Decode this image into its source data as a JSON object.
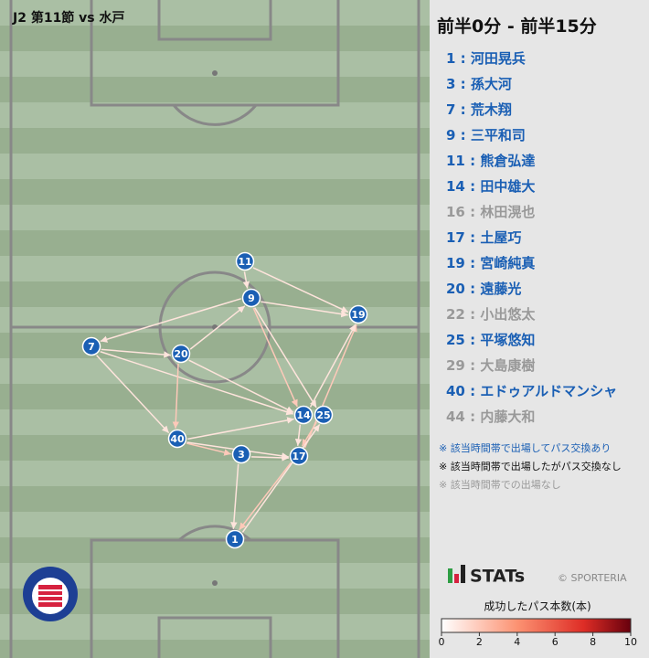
{
  "header": {
    "match": "J2 第11節 vs 水戸"
  },
  "panel": {
    "title": "前半0分 - 前半15分",
    "players": [
      {
        "label": "1 : 河田晃兵",
        "color": "#1a5fb4"
      },
      {
        "label": "3 : 孫大河",
        "color": "#1a5fb4"
      },
      {
        "label": "7 : 荒木翔",
        "color": "#1a5fb4"
      },
      {
        "label": "9 : 三平和司",
        "color": "#1a5fb4"
      },
      {
        "label": "11 : 熊倉弘達",
        "color": "#1a5fb4"
      },
      {
        "label": "14 : 田中雄大",
        "color": "#1a5fb4"
      },
      {
        "label": "16 : 林田滉也",
        "color": "#999999"
      },
      {
        "label": "17 : 土屋巧",
        "color": "#1a5fb4"
      },
      {
        "label": "19 : 宮崎純真",
        "color": "#1a5fb4"
      },
      {
        "label": "20 : 遠藤光",
        "color": "#1a5fb4"
      },
      {
        "label": "22 : 小出悠太",
        "color": "#999999"
      },
      {
        "label": "25 : 平塚悠知",
        "color": "#1a5fb4"
      },
      {
        "label": "29 : 大島康樹",
        "color": "#999999"
      },
      {
        "label": "40 : エドゥアルドマンシャ",
        "color": "#1a5fb4"
      },
      {
        "label": "44 : 内藤大和",
        "color": "#999999"
      }
    ],
    "notes": [
      {
        "text": "※ 該当時間帯で出場してパス交換あり",
        "color": "#1a5fb4"
      },
      {
        "text": "※ 該当時間帯で出場したがパス交換なし",
        "color": "#111111"
      },
      {
        "text": "※ 該当時間帯での出場なし",
        "color": "#999999"
      }
    ],
    "brand": "STATs",
    "copyright": "© SPORTERIA"
  },
  "colorbar": {
    "title": "成功したパス本数(本)",
    "lim": [
      0,
      10
    ],
    "ticks": [
      0,
      2,
      4,
      6,
      8,
      10
    ]
  },
  "nodes": [
    {
      "label": "11"
    },
    {
      "label": "9"
    },
    {
      "label": "19"
    },
    {
      "label": "7"
    },
    {
      "label": "20"
    },
    {
      "label": "14"
    },
    {
      "label": "25"
    },
    {
      "label": "40"
    },
    {
      "label": "3"
    },
    {
      "label": "17"
    },
    {
      "label": "1"
    }
  ],
  "edges": [
    {
      "from": "11",
      "to": "9",
      "count": 1
    },
    {
      "from": "11",
      "to": "19",
      "count": 1
    },
    {
      "from": "9",
      "to": "19",
      "count": 1
    },
    {
      "from": "9",
      "to": "7",
      "count": 1
    },
    {
      "from": "20",
      "to": "9",
      "count": 1
    },
    {
      "from": "9",
      "to": "14",
      "count": 2
    },
    {
      "from": "9",
      "to": "25",
      "count": 1
    },
    {
      "from": "7",
      "to": "20",
      "count": 1
    },
    {
      "from": "7",
      "to": "40",
      "count": 1
    },
    {
      "from": "7",
      "to": "14",
      "count": 1
    },
    {
      "from": "20",
      "to": "40",
      "count": 2
    },
    {
      "from": "20",
      "to": "14",
      "count": 1
    },
    {
      "from": "40",
      "to": "14",
      "count": 1
    },
    {
      "from": "40",
      "to": "3",
      "count": 2
    },
    {
      "from": "40",
      "to": "17",
      "count": 1
    },
    {
      "from": "3",
      "to": "17",
      "count": 1
    },
    {
      "from": "14",
      "to": "17",
      "count": 1
    },
    {
      "from": "25",
      "to": "17",
      "count": 2
    },
    {
      "from": "17",
      "to": "19",
      "count": 2
    },
    {
      "from": "14",
      "to": "19",
      "count": 1
    },
    {
      "from": "17",
      "to": "1",
      "count": 2
    },
    {
      "from": "3",
      "to": "1",
      "count": 1
    },
    {
      "from": "1",
      "to": "25",
      "count": 1
    }
  ]
}
